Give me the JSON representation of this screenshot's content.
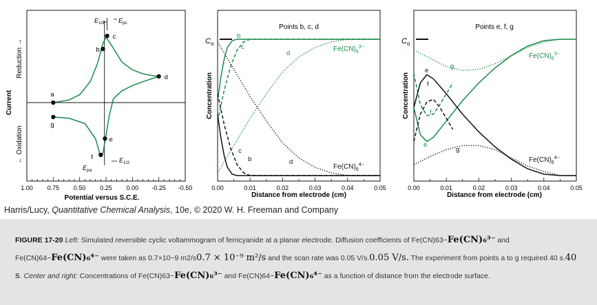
{
  "chart_data": [
    {
      "type": "line",
      "panel": "left",
      "xlabel": "Potential versus S.C.E.",
      "ylabel": "Current",
      "xlim": [
        1.0,
        -0.5
      ],
      "xticks": [
        "1.00",
        "0.75",
        "0.50",
        "0.25",
        "0.00",
        "-0.25",
        "-0.50"
      ],
      "xtick_values": [
        1.0,
        0.75,
        0.5,
        0.25,
        0.0,
        -0.25,
        -0.5
      ],
      "region_labels": {
        "up": "Reduction →",
        "down": "← Oxidation"
      },
      "annotations": [
        "E1/2",
        "Epc",
        "Epa",
        "E1/2"
      ],
      "forward_curve": [
        [
          0.75,
          0.0
        ],
        [
          0.6,
          0.04
        ],
        [
          0.5,
          0.12
        ],
        [
          0.4,
          0.32
        ],
        [
          0.33,
          0.6
        ],
        [
          0.28,
          0.9
        ],
        [
          0.25,
          1.0
        ],
        [
          0.2,
          0.88
        ],
        [
          0.1,
          0.62
        ],
        [
          0.0,
          0.5
        ],
        [
          -0.1,
          0.44
        ],
        [
          -0.2,
          0.41
        ],
        [
          -0.25,
          0.4
        ]
      ],
      "reverse_curve": [
        [
          -0.25,
          0.4
        ],
        [
          -0.1,
          0.32
        ],
        [
          0.0,
          0.26
        ],
        [
          0.1,
          0.18
        ],
        [
          0.18,
          0.06
        ],
        [
          0.22,
          -0.2
        ],
        [
          0.25,
          -0.5
        ],
        [
          0.28,
          -0.78
        ],
        [
          0.31,
          -0.78
        ],
        [
          0.35,
          -0.55
        ],
        [
          0.45,
          -0.32
        ],
        [
          0.6,
          -0.24
        ],
        [
          0.75,
          -0.22
        ]
      ],
      "points": [
        {
          "label": "a",
          "x": 0.75,
          "y": 0.0
        },
        {
          "label": "b",
          "x": 0.28,
          "y": 0.82
        },
        {
          "label": "c",
          "x": 0.24,
          "y": 1.02
        },
        {
          "label": "d",
          "x": -0.25,
          "y": 0.4
        },
        {
          "label": "e",
          "x": 0.26,
          "y": -0.55
        },
        {
          "label": "f",
          "x": 0.3,
          "y": -0.8
        },
        {
          "label": "g",
          "x": 0.75,
          "y": -0.22
        }
      ]
    },
    {
      "type": "line",
      "panel": "center",
      "title": "Points b, c, d",
      "xlabel": "Distance from electrode (cm)",
      "ylabel": "Concentration",
      "xlim": [
        0,
        0.05
      ],
      "xticks": [
        "0.00",
        "0.01",
        "0.02",
        "0.03",
        "0.04",
        "0.05"
      ],
      "ymark": "Co",
      "series": [
        {
          "name": "Fe(CN)6 3−",
          "curves": [
            {
              "label": "b",
              "style": "solid",
              "points": [
                [
                  0,
                  0.55
                ],
                [
                  0.001,
                  0.72
                ],
                [
                  0.002,
                  0.85
                ],
                [
                  0.003,
                  0.94
                ],
                [
                  0.0045,
                  0.99
                ],
                [
                  0.006,
                  1.0
                ],
                [
                  0.05,
                  1.0
                ]
              ]
            },
            {
              "label": "c",
              "style": "dashed",
              "points": [
                [
                  0,
                  0.4
                ],
                [
                  0.002,
                  0.62
                ],
                [
                  0.004,
                  0.8
                ],
                [
                  0.006,
                  0.92
                ],
                [
                  0.008,
                  0.98
                ],
                [
                  0.01,
                  1.0
                ],
                [
                  0.05,
                  1.0
                ]
              ]
            },
            {
              "label": "d",
              "style": "dotted",
              "points": [
                [
                  0,
                  0.02
                ],
                [
                  0.005,
                  0.22
                ],
                [
                  0.01,
                  0.42
                ],
                [
                  0.015,
                  0.6
                ],
                [
                  0.02,
                  0.76
                ],
                [
                  0.025,
                  0.87
                ],
                [
                  0.03,
                  0.94
                ],
                [
                  0.035,
                  0.98
                ],
                [
                  0.04,
                  1.0
                ],
                [
                  0.05,
                  1.0
                ]
              ]
            }
          ]
        },
        {
          "name": "Fe(CN)6 4−",
          "curves": [
            {
              "label": "b",
              "style": "solid",
              "points": [
                [
                  0,
                  0.45
                ],
                [
                  0.001,
                  0.28
                ],
                [
                  0.002,
                  0.15
                ],
                [
                  0.003,
                  0.06
                ],
                [
                  0.0045,
                  0.01
                ],
                [
                  0.006,
                  0.0
                ],
                [
                  0.05,
                  0.0
                ]
              ]
            },
            {
              "label": "c",
              "style": "dashed",
              "points": [
                [
                  0,
                  0.6
                ],
                [
                  0.002,
                  0.38
                ],
                [
                  0.004,
                  0.2
                ],
                [
                  0.006,
                  0.08
                ],
                [
                  0.008,
                  0.02
                ],
                [
                  0.01,
                  0.0
                ],
                [
                  0.05,
                  0.0
                ]
              ]
            },
            {
              "label": "d",
              "style": "dotted",
              "points": [
                [
                  0,
                  0.98
                ],
                [
                  0.005,
                  0.78
                ],
                [
                  0.01,
                  0.58
                ],
                [
                  0.015,
                  0.4
                ],
                [
                  0.02,
                  0.24
                ],
                [
                  0.025,
                  0.13
                ],
                [
                  0.03,
                  0.06
                ],
                [
                  0.035,
                  0.02
                ],
                [
                  0.04,
                  0.0
                ],
                [
                  0.05,
                  0.0
                ]
              ]
            }
          ]
        }
      ]
    },
    {
      "type": "line",
      "panel": "right",
      "title": "Points e, f, g",
      "xlabel": "Distance from electrode (cm)",
      "ylabel": "Concentration",
      "xlim": [
        0,
        0.05
      ],
      "xticks": [
        "0.00",
        "0.01",
        "0.02",
        "0.03",
        "0.04",
        "0.05"
      ],
      "ymark": "Co",
      "series": [
        {
          "name": "Fe(CN)6 3−",
          "curves": [
            {
              "label": "e",
              "style": "solid",
              "points": [
                [
                  0,
                  0.5
                ],
                [
                  0.002,
                  0.3
                ],
                [
                  0.004,
                  0.25
                ],
                [
                  0.006,
                  0.28
                ],
                [
                  0.01,
                  0.4
                ],
                [
                  0.015,
                  0.55
                ],
                [
                  0.02,
                  0.68
                ],
                [
                  0.025,
                  0.79
                ],
                [
                  0.03,
                  0.88
                ],
                [
                  0.035,
                  0.95
                ],
                [
                  0.04,
                  0.99
                ],
                [
                  0.045,
                  1.0
                ],
                [
                  0.05,
                  1.0
                ]
              ]
            },
            {
              "label": "f",
              "style": "dashed",
              "points": [
                [
                  0,
                  0.75
                ],
                [
                  0.002,
                  0.52
                ],
                [
                  0.004,
                  0.44
                ],
                [
                  0.006,
                  0.45
                ],
                [
                  0.008,
                  0.52
                ],
                [
                  0.01,
                  0.6
                ],
                [
                  0.012,
                  0.68
                ]
              ]
            },
            {
              "label": "g",
              "style": "dotted",
              "points": [
                [
                  0,
                  0.92
                ],
                [
                  0.005,
                  0.86
                ],
                [
                  0.01,
                  0.8
                ],
                [
                  0.015,
                  0.77
                ],
                [
                  0.02,
                  0.78
                ],
                [
                  0.025,
                  0.82
                ],
                [
                  0.03,
                  0.88
                ],
                [
                  0.035,
                  0.94
                ],
                [
                  0.04,
                  0.98
                ],
                [
                  0.045,
                  1.0
                ],
                [
                  0.05,
                  1.0
                ]
              ]
            }
          ]
        },
        {
          "name": "Fe(CN)6 4−",
          "curves": [
            {
              "label": "e",
              "style": "solid",
              "points": [
                [
                  0,
                  0.5
                ],
                [
                  0.002,
                  0.68
                ],
                [
                  0.004,
                  0.74
                ],
                [
                  0.006,
                  0.71
                ],
                [
                  0.01,
                  0.6
                ],
                [
                  0.015,
                  0.45
                ],
                [
                  0.02,
                  0.32
                ],
                [
                  0.025,
                  0.21
                ],
                [
                  0.03,
                  0.12
                ],
                [
                  0.035,
                  0.05
                ],
                [
                  0.04,
                  0.01
                ],
                [
                  0.045,
                  0.0
                ],
                [
                  0.05,
                  0.0
                ]
              ]
            },
            {
              "label": "f",
              "style": "dashed",
              "points": [
                [
                  0,
                  0.25
                ],
                [
                  0.002,
                  0.45
                ],
                [
                  0.004,
                  0.54
                ],
                [
                  0.006,
                  0.56
                ],
                [
                  0.008,
                  0.5
                ],
                [
                  0.01,
                  0.42
                ],
                [
                  0.012,
                  0.34
                ]
              ]
            },
            {
              "label": "g",
              "style": "dotted",
              "points": [
                [
                  0,
                  0.08
                ],
                [
                  0.005,
                  0.14
                ],
                [
                  0.01,
                  0.19
                ],
                [
                  0.015,
                  0.22
                ],
                [
                  0.02,
                  0.22
                ],
                [
                  0.025,
                  0.19
                ],
                [
                  0.03,
                  0.13
                ],
                [
                  0.035,
                  0.07
                ],
                [
                  0.04,
                  0.03
                ],
                [
                  0.045,
                  0.0
                ],
                [
                  0.05,
                  0.0
                ]
              ]
            }
          ]
        }
      ]
    }
  ],
  "colors": {
    "green": "#1a8a4a",
    "black": "#111111",
    "caption_bg": "#e4e4e4"
  },
  "credit": {
    "authors": "Harris/Lucy, ",
    "book": "Quantitative Chemical Analysis",
    "rest": ", 10e, © 2020 W. H. Freeman and Company"
  },
  "caption": {
    "fignum": "FIGURE 17-20",
    "left_label": "Left:",
    "t1": " Simulated reversible cyclic voltammogram of ferricyanide at a planar electrode. Diffusion coefficients of Fe(CN)63−",
    "m_fe3": "Fe(CN)₆³⁻",
    "t2": "and Fe(CN)64−",
    "m_fe4": "Fe(CN)₆⁴⁻",
    "t3": " were taken as 0.7×10−9 m2/s",
    "m_diff": "0.7 × 10⁻⁹ m²/s",
    "t4": " and the scan rate was 0.05 V/s.",
    "m_rate": "0.05 V/s.",
    "t5": " The experiment from points a to g required 40 s.",
    "m_time": "40 s",
    "t6": ". ",
    "center_right": "Center and right:",
    "t7": " Concentrations of Fe(CN)63−",
    "t8": " and Fe(CN)64−",
    "t9": " as a function of distance from the electrode surface."
  }
}
